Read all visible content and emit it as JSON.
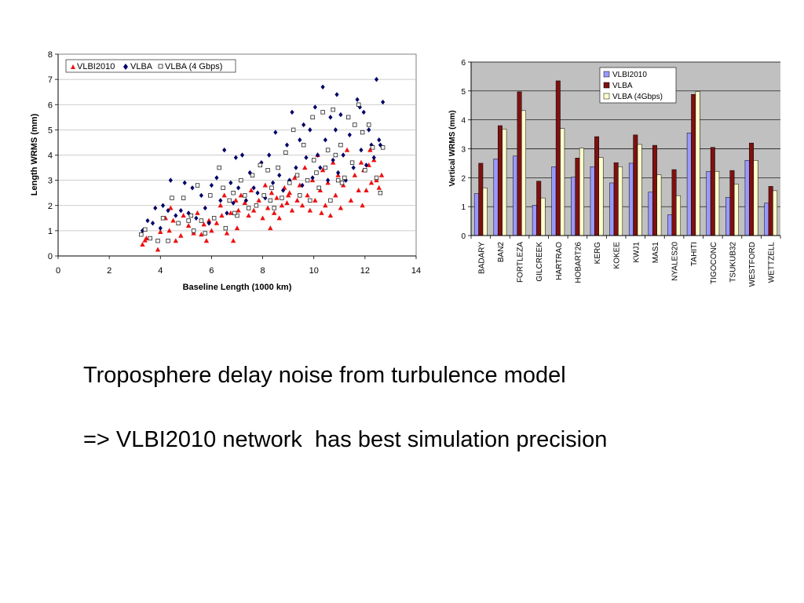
{
  "captions": {
    "line1": "Troposphere delay noise from turbulence model",
    "line2": "=> VLBI2010 network  has best simulation precision"
  },
  "colors": {
    "vlbi2010_scatter": "#ee1111",
    "vlba_scatter": "#000066",
    "vlbi2010_bar": "#9999ff",
    "vlba_bar": "#7f1010",
    "vlba4_bar": "#ffffcc",
    "plot_bg": "#c0c0c0"
  },
  "chart_data": [
    {
      "type": "scatter",
      "title": "",
      "xlabel": "Baseline Length (1000 km)",
      "ylabel": "Length WRMS (mm)",
      "xlim": [
        0,
        14
      ],
      "ylim": [
        0,
        8
      ],
      "xticks": [
        "0",
        "2",
        "4",
        "6",
        "8",
        "10",
        "12",
        "14"
      ],
      "yticks": [
        "0",
        "1",
        "2",
        "3",
        "4",
        "5",
        "6",
        "7",
        "8"
      ],
      "grid": "horizontal",
      "legend_position": "top-left",
      "series": [
        {
          "name": "VLBI2010",
          "marker": "triangle",
          "points": [
            [
              3.3,
              0.45
            ],
            [
              3.4,
              0.62
            ],
            [
              3.45,
              0.7
            ],
            [
              3.9,
              0.25
            ],
            [
              4.0,
              0.95
            ],
            [
              4.2,
              1.5
            ],
            [
              4.35,
              1.0
            ],
            [
              4.4,
              1.9
            ],
            [
              4.5,
              1.4
            ],
            [
              4.6,
              0.6
            ],
            [
              4.8,
              0.8
            ],
            [
              4.9,
              1.6
            ],
            [
              5.1,
              1.2
            ],
            [
              5.3,
              0.9
            ],
            [
              5.45,
              1.7
            ],
            [
              5.6,
              0.85
            ],
            [
              5.7,
              1.25
            ],
            [
              5.8,
              0.6
            ],
            [
              5.9,
              1.4
            ],
            [
              6.0,
              1.0
            ],
            [
              6.2,
              1.3
            ],
            [
              6.35,
              2.0
            ],
            [
              6.4,
              1.6
            ],
            [
              6.5,
              2.4
            ],
            [
              6.6,
              0.9
            ],
            [
              6.75,
              1.7
            ],
            [
              6.85,
              0.6
            ],
            [
              6.95,
              2.2
            ],
            [
              7.0,
              1.1
            ],
            [
              7.05,
              1.8
            ],
            [
              7.15,
              2.4
            ],
            [
              7.3,
              2.1
            ],
            [
              7.45,
              1.6
            ],
            [
              7.55,
              2.6
            ],
            [
              7.65,
              1.8
            ],
            [
              7.85,
              2.2
            ],
            [
              8.0,
              1.5
            ],
            [
              8.1,
              2.8
            ],
            [
              8.2,
              1.9
            ],
            [
              8.3,
              1.1
            ],
            [
              8.35,
              2.5
            ],
            [
              8.45,
              1.7
            ],
            [
              8.55,
              2.3
            ],
            [
              8.65,
              1.5
            ],
            [
              8.75,
              2.0
            ],
            [
              8.85,
              2.7
            ],
            [
              8.95,
              2.1
            ],
            [
              9.05,
              2.5
            ],
            [
              9.15,
              1.8
            ],
            [
              9.25,
              3.1
            ],
            [
              9.35,
              2.2
            ],
            [
              9.45,
              2.8
            ],
            [
              9.55,
              2.0
            ],
            [
              9.65,
              3.5
            ],
            [
              9.75,
              2.4
            ],
            [
              9.85,
              1.8
            ],
            [
              9.95,
              3.0
            ],
            [
              10.05,
              2.2
            ],
            [
              10.15,
              4.0
            ],
            [
              10.25,
              2.6
            ],
            [
              10.35,
              3.4
            ],
            [
              10.45,
              2.0
            ],
            [
              10.55,
              2.9
            ],
            [
              10.65,
              1.6
            ],
            [
              10.75,
              3.7
            ],
            [
              10.85,
              2.4
            ],
            [
              10.95,
              3.2
            ],
            [
              11.05,
              1.9
            ],
            [
              11.15,
              2.8
            ],
            [
              11.3,
              4.2
            ],
            [
              11.45,
              2.2
            ],
            [
              11.6,
              3.2
            ],
            [
              11.75,
              2.6
            ],
            [
              11.85,
              3.7
            ],
            [
              11.95,
              3.4
            ],
            [
              12.05,
              2.6
            ],
            [
              12.15,
              3.6
            ],
            [
              12.25,
              2.9
            ],
            [
              12.35,
              3.8
            ],
            [
              12.45,
              3.0
            ],
            [
              12.55,
              2.7
            ],
            [
              12.65,
              3.2
            ],
            [
              12.2,
              4.2
            ],
            [
              11.9,
              2.0
            ],
            [
              10.3,
              1.7
            ],
            [
              9.0,
              2.4
            ]
          ]
        },
        {
          "name": "VLBA",
          "marker": "diamond",
          "points": [
            [
              3.3,
              1.0
            ],
            [
              3.5,
              1.4
            ],
            [
              3.7,
              1.3
            ],
            [
              3.8,
              1.9
            ],
            [
              4.0,
              1.1
            ],
            [
              4.1,
              2.0
            ],
            [
              4.3,
              1.8
            ],
            [
              4.4,
              3.0
            ],
            [
              4.6,
              1.6
            ],
            [
              4.8,
              1.8
            ],
            [
              4.95,
              2.9
            ],
            [
              5.1,
              1.7
            ],
            [
              5.25,
              2.7
            ],
            [
              5.4,
              1.5
            ],
            [
              5.6,
              2.4
            ],
            [
              5.75,
              1.9
            ],
            [
              5.9,
              1.3
            ],
            [
              6.0,
              2.8
            ],
            [
              6.2,
              3.1
            ],
            [
              6.35,
              2.2
            ],
            [
              6.5,
              4.2
            ],
            [
              6.6,
              1.7
            ],
            [
              6.75,
              2.9
            ],
            [
              6.85,
              2.1
            ],
            [
              6.95,
              3.9
            ],
            [
              7.05,
              2.7
            ],
            [
              7.2,
              4.0
            ],
            [
              7.35,
              2.2
            ],
            [
              7.5,
              3.3
            ],
            [
              7.65,
              2.7
            ],
            [
              7.8,
              2.5
            ],
            [
              7.95,
              3.7
            ],
            [
              8.1,
              2.3
            ],
            [
              8.25,
              4.0
            ],
            [
              8.4,
              2.9
            ],
            [
              8.5,
              4.9
            ],
            [
              8.65,
              3.2
            ],
            [
              8.8,
              2.6
            ],
            [
              8.95,
              4.4
            ],
            [
              9.05,
              3.0
            ],
            [
              9.15,
              5.7
            ],
            [
              9.3,
              3.5
            ],
            [
              9.45,
              4.6
            ],
            [
              9.55,
              2.8
            ],
            [
              9.7,
              3.9
            ],
            [
              9.85,
              5.0
            ],
            [
              9.95,
              3.1
            ],
            [
              10.05,
              5.9
            ],
            [
              10.15,
              4.0
            ],
            [
              10.25,
              3.5
            ],
            [
              10.35,
              6.7
            ],
            [
              10.45,
              4.6
            ],
            [
              10.55,
              3.0
            ],
            [
              10.65,
              5.5
            ],
            [
              10.75,
              3.8
            ],
            [
              10.85,
              5.0
            ],
            [
              10.95,
              3.3
            ],
            [
              11.05,
              5.6
            ],
            [
              11.15,
              4.0
            ],
            [
              11.25,
              3.0
            ],
            [
              11.4,
              4.8
            ],
            [
              11.55,
              3.5
            ],
            [
              11.7,
              6.2
            ],
            [
              11.85,
              4.2
            ],
            [
              11.95,
              5.7
            ],
            [
              12.05,
              3.6
            ],
            [
              12.15,
              5.0
            ],
            [
              12.25,
              4.4
            ],
            [
              12.35,
              3.9
            ],
            [
              12.45,
              7.0
            ],
            [
              12.55,
              4.6
            ],
            [
              12.7,
              6.1
            ],
            [
              12.6,
              4.4
            ],
            [
              11.8,
              5.9
            ],
            [
              10.9,
              6.4
            ],
            [
              9.6,
              5.2
            ]
          ]
        },
        {
          "name": "VLBA (4 Gbps)",
          "marker": "square",
          "points": [
            [
              3.25,
              0.85
            ],
            [
              3.4,
              1.05
            ],
            [
              3.6,
              0.7
            ],
            [
              3.9,
              0.6
            ],
            [
              4.1,
              1.5
            ],
            [
              4.3,
              0.6
            ],
            [
              4.45,
              2.3
            ],
            [
              4.7,
              1.3
            ],
            [
              4.9,
              2.3
            ],
            [
              5.1,
              1.4
            ],
            [
              5.3,
              1.0
            ],
            [
              5.45,
              2.8
            ],
            [
              5.6,
              1.4
            ],
            [
              5.75,
              0.9
            ],
            [
              5.95,
              2.4
            ],
            [
              6.1,
              1.5
            ],
            [
              6.3,
              3.5
            ],
            [
              6.45,
              2.7
            ],
            [
              6.55,
              1.1
            ],
            [
              6.7,
              2.2
            ],
            [
              6.85,
              2.5
            ],
            [
              7.0,
              1.6
            ],
            [
              7.15,
              3.0
            ],
            [
              7.3,
              2.4
            ],
            [
              7.45,
              1.9
            ],
            [
              7.6,
              3.2
            ],
            [
              7.75,
              2.0
            ],
            [
              7.9,
              3.6
            ],
            [
              8.05,
              2.4
            ],
            [
              8.2,
              3.4
            ],
            [
              8.35,
              2.7
            ],
            [
              8.45,
              1.9
            ],
            [
              8.6,
              3.5
            ],
            [
              8.75,
              2.3
            ],
            [
              8.9,
              4.1
            ],
            [
              9.05,
              2.9
            ],
            [
              9.2,
              5.0
            ],
            [
              9.35,
              3.2
            ],
            [
              9.45,
              2.4
            ],
            [
              9.6,
              4.4
            ],
            [
              9.75,
              3.0
            ],
            [
              9.85,
              2.2
            ],
            [
              9.95,
              5.5
            ],
            [
              10.1,
              3.3
            ],
            [
              10.2,
              2.7
            ],
            [
              10.35,
              5.7
            ],
            [
              10.45,
              3.5
            ],
            [
              10.55,
              4.2
            ],
            [
              10.65,
              2.2
            ],
            [
              10.75,
              5.8
            ],
            [
              10.85,
              4.0
            ],
            [
              10.95,
              3.0
            ],
            [
              11.05,
              4.4
            ],
            [
              11.2,
              3.1
            ],
            [
              11.35,
              5.5
            ],
            [
              11.5,
              3.7
            ],
            [
              11.6,
              5.2
            ],
            [
              11.75,
              6.0
            ],
            [
              11.9,
              4.9
            ],
            [
              12.0,
              3.4
            ],
            [
              12.15,
              5.2
            ],
            [
              12.3,
              4.3
            ],
            [
              12.45,
              3.1
            ],
            [
              12.6,
              2.5
            ],
            [
              12.7,
              4.3
            ],
            [
              11.1,
              2.9
            ],
            [
              10.0,
              3.8
            ],
            [
              8.3,
              2.2
            ],
            [
              6.9,
              1.7
            ],
            [
              5.2,
              1.6
            ]
          ]
        }
      ]
    },
    {
      "type": "bar",
      "title": "",
      "xlabel": "",
      "ylabel": "Vertical WRMS (mm)",
      "ylim": [
        0,
        6
      ],
      "yticks": [
        "0",
        "1",
        "2",
        "3",
        "4",
        "5",
        "6"
      ],
      "grid": "horizontal",
      "legend_position": "top-right",
      "categories": [
        "BADARY",
        "BAN2",
        "FORTLEZA",
        "GILCREEK",
        "HARTRAO",
        "HOBART26",
        "KERG",
        "KOKEE",
        "KWJ1",
        "MAS1",
        "NYALES20",
        "TAHITI",
        "TIGOCONC",
        "TSUKUB32",
        "WESTFORD",
        "WETTZELL"
      ],
      "series": [
        {
          "name": "VLBI2010",
          "values": [
            1.45,
            2.65,
            2.75,
            1.05,
            2.38,
            2.02,
            2.38,
            1.82,
            2.5,
            1.5,
            0.72,
            3.55,
            2.22,
            1.32,
            2.6,
            1.12
          ]
        },
        {
          "name": "VLBA",
          "values": [
            2.5,
            3.8,
            4.97,
            1.88,
            5.35,
            2.68,
            3.42,
            2.52,
            3.48,
            3.12,
            2.28,
            4.88,
            3.05,
            2.25,
            3.2,
            1.7
          ]
        },
        {
          "name": "VLBA (4Gbps)",
          "values": [
            1.65,
            3.68,
            4.32,
            1.3,
            3.7,
            3.02,
            2.7,
            2.38,
            3.15,
            2.1,
            1.38,
            4.98,
            2.22,
            1.78,
            2.6,
            1.55
          ]
        }
      ]
    }
  ]
}
